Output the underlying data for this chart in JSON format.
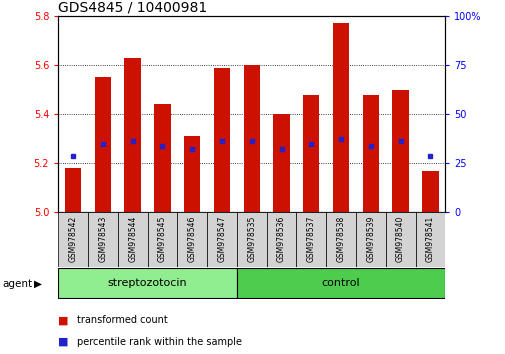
{
  "title": "GDS4845 / 10400981",
  "samples": [
    "GSM978542",
    "GSM978543",
    "GSM978544",
    "GSM978545",
    "GSM978546",
    "GSM978547",
    "GSM978535",
    "GSM978536",
    "GSM978537",
    "GSM978538",
    "GSM978539",
    "GSM978540",
    "GSM978541"
  ],
  "red_values": [
    5.18,
    5.55,
    5.63,
    5.44,
    5.31,
    5.59,
    5.6,
    5.4,
    5.48,
    5.77,
    5.48,
    5.5,
    5.17
  ],
  "blue_values": [
    5.23,
    5.28,
    5.29,
    5.27,
    5.26,
    5.29,
    5.29,
    5.26,
    5.28,
    5.3,
    5.27,
    5.29,
    5.23
  ],
  "ylim_left": [
    5.0,
    5.8
  ],
  "ylim_right": [
    0,
    100
  ],
  "yticks_left": [
    5.0,
    5.2,
    5.4,
    5.6,
    5.8
  ],
  "yticks_right": [
    0,
    25,
    50,
    75,
    100
  ],
  "ytick_labels_right": [
    "0",
    "25",
    "50",
    "75",
    "100%"
  ],
  "groups": [
    {
      "label": "streptozotocin",
      "start": 0,
      "end": 6,
      "color": "#90EE90"
    },
    {
      "label": "control",
      "start": 6,
      "end": 13,
      "color": "#4ECC4E"
    }
  ],
  "bar_color": "#CC1100",
  "blue_color": "#2222CC",
  "agent_label": "agent",
  "legend": [
    "transformed count",
    "percentile rank within the sample"
  ],
  "bar_width": 0.55,
  "title_fontsize": 10,
  "tick_fontsize": 7,
  "sample_fontsize": 5.5,
  "group_fontsize": 8,
  "legend_fontsize": 7
}
